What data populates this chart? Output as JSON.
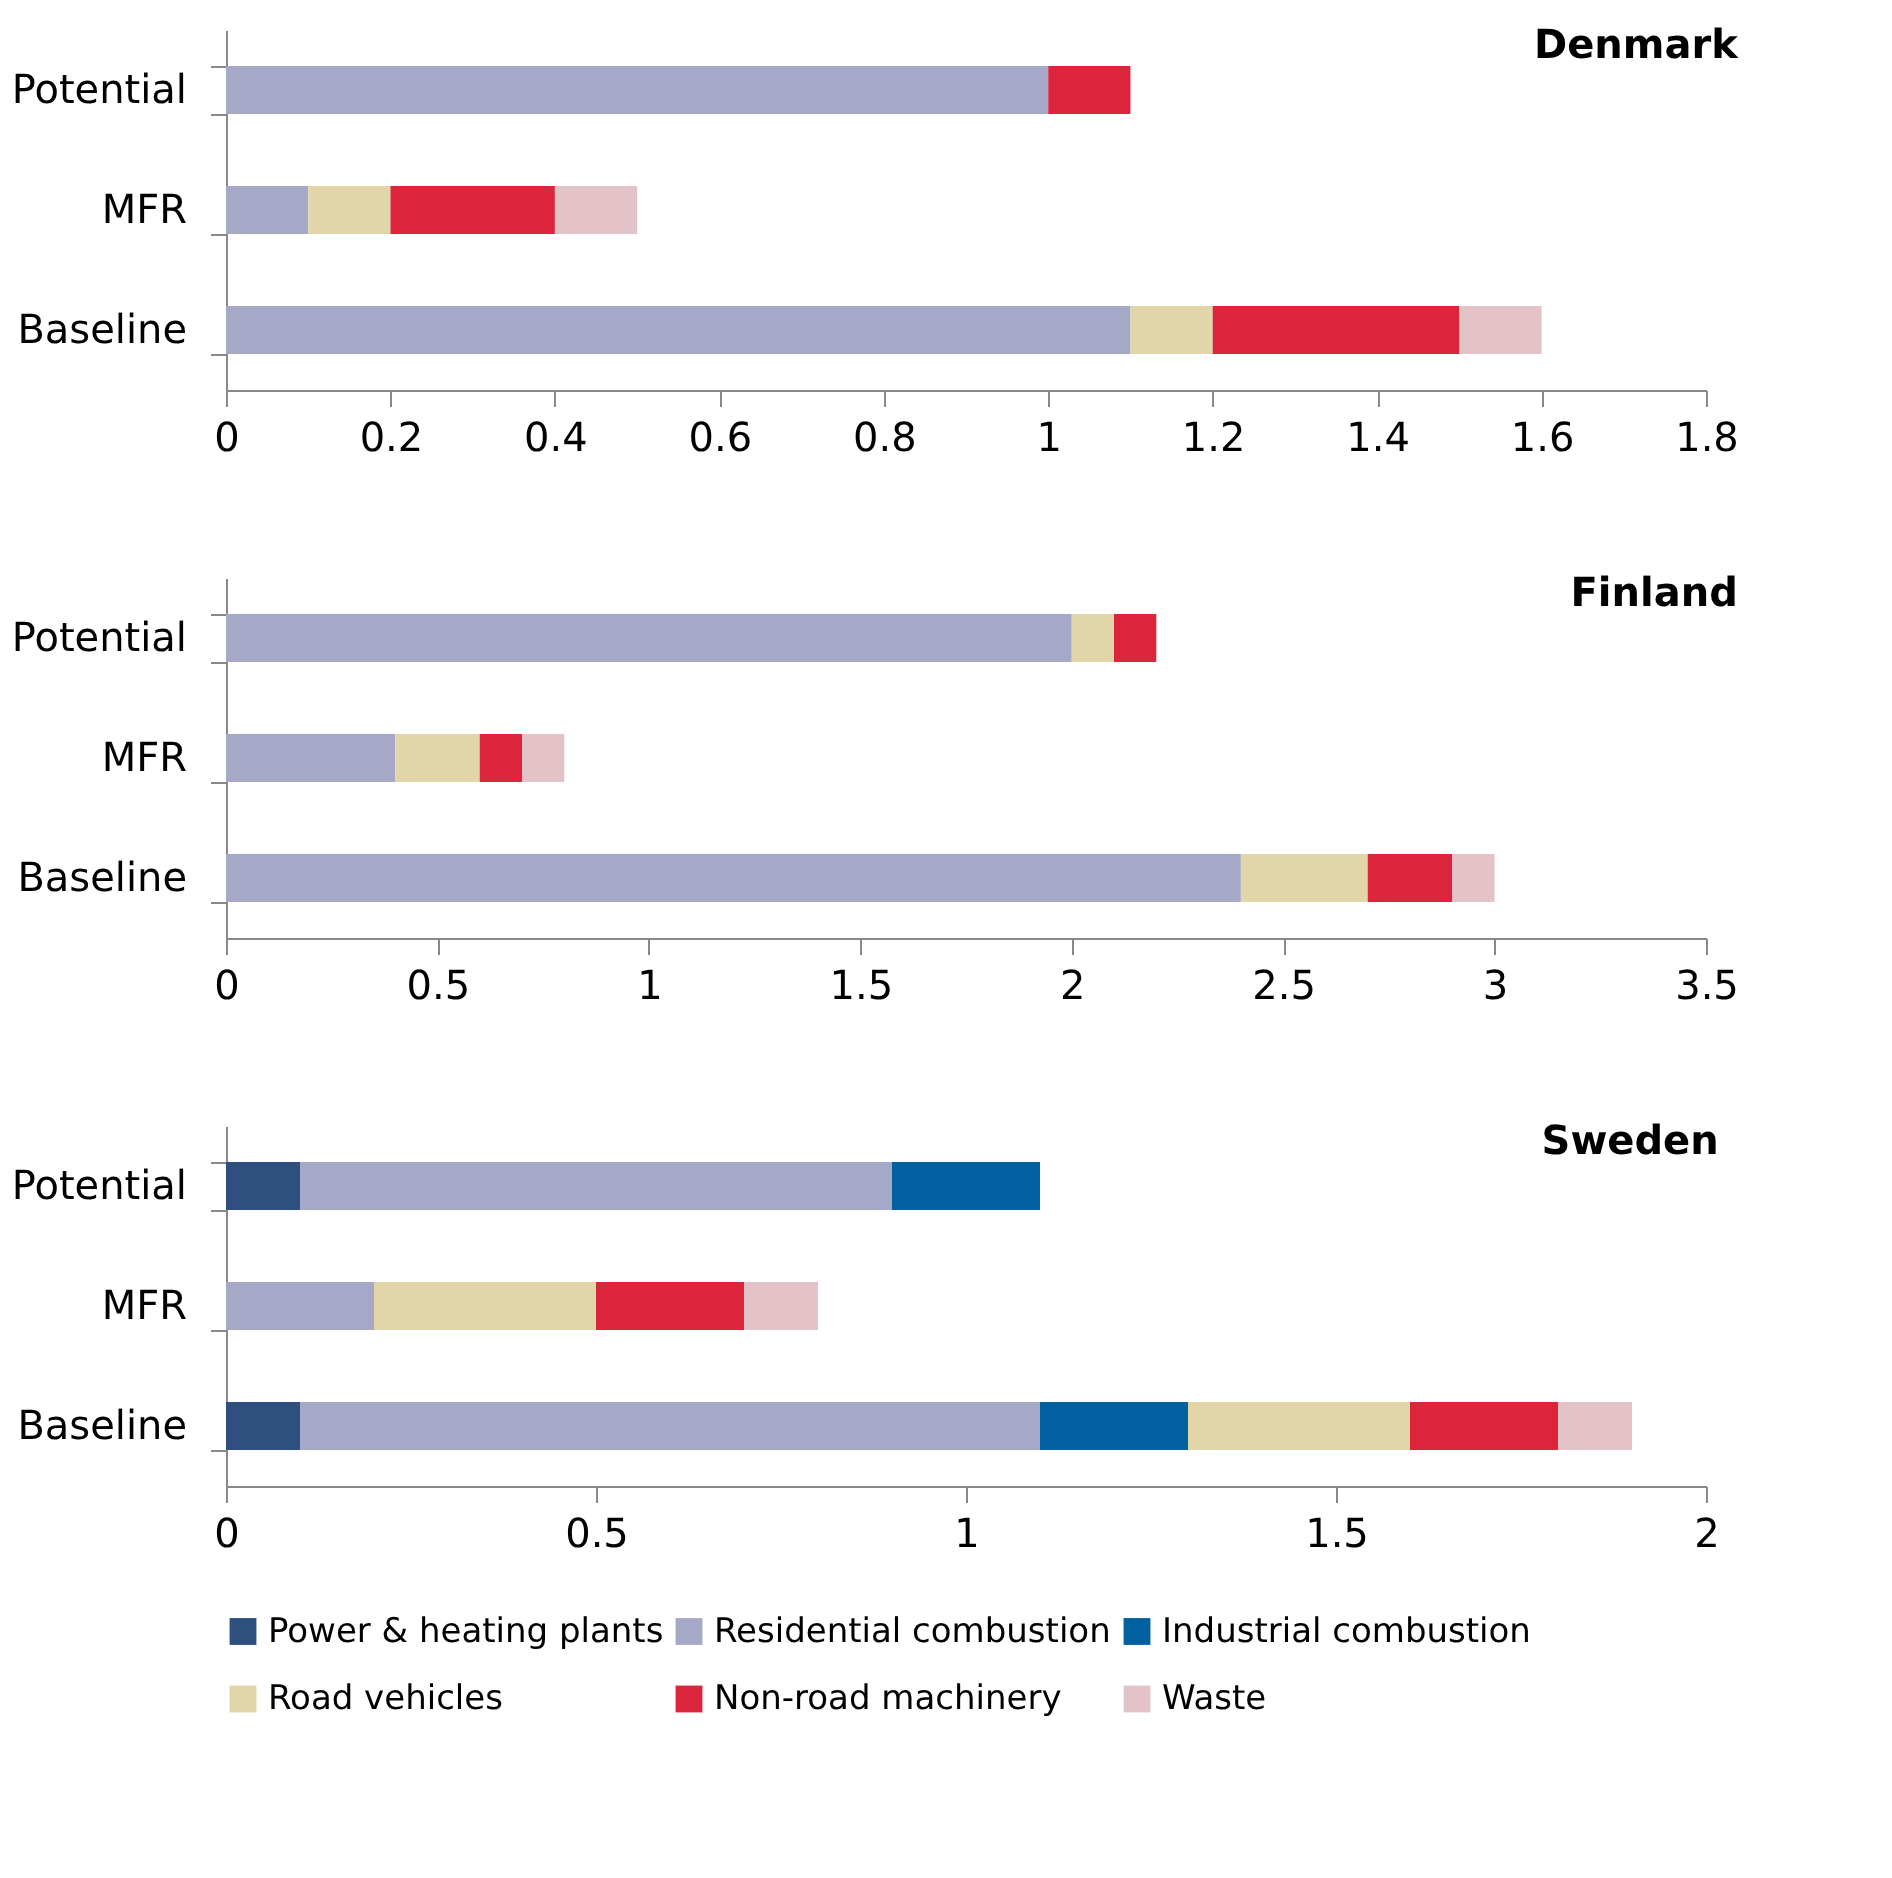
{
  "chart_data": [
    {
      "type": "bar",
      "orientation": "horizontal",
      "stacked": true,
      "title": "Denmark",
      "categories": [
        "Potential",
        "MFR",
        "Baseline"
      ],
      "xlim": [
        0,
        1.8
      ],
      "xticks": [
        0,
        0.2,
        0.4,
        0.6,
        0.8,
        1,
        1.2,
        1.4,
        1.6,
        1.8
      ],
      "grid": false,
      "series": [
        {
          "color": "#a6a8c8",
          "values": [
            1.0,
            0.1,
            1.1
          ]
        },
        {
          "color": "#e2d5a8",
          "values": [
            null,
            0.1,
            0.1
          ]
        },
        {
          "color": "#dc243c",
          "values": [
            0.1,
            0.2,
            0.3
          ]
        },
        {
          "color": "#e3c2c8",
          "values": [
            null,
            0.1,
            0.1
          ]
        }
      ]
    },
    {
      "type": "bar",
      "orientation": "horizontal",
      "stacked": true,
      "title": "Finland",
      "categories": [
        "Potential",
        "MFR",
        "Baseline"
      ],
      "xlim": [
        0,
        3.5
      ],
      "xticks": [
        0,
        0.5,
        1,
        1.5,
        2,
        2.5,
        3,
        3.5
      ],
      "grid": false,
      "series": [
        {
          "color": "#a6a8c8",
          "values": [
            2.0,
            0.4,
            2.4
          ]
        },
        {
          "color": "#e2d5a8",
          "values": [
            0.1,
            0.2,
            0.3
          ]
        },
        {
          "color": "#dc243c",
          "values": [
            0.1,
            0.1,
            0.2
          ]
        },
        {
          "color": "#e3c2c8",
          "values": [
            null,
            0.1,
            0.1
          ]
        }
      ]
    },
    {
      "type": "bar",
      "orientation": "horizontal",
      "stacked": true,
      "title": "Sweden",
      "categories": [
        "Potential",
        "MFR",
        "Baseline"
      ],
      "xlim": [
        0,
        2
      ],
      "xticks": [
        0,
        0.5,
        1,
        1.5,
        2
      ],
      "grid": false,
      "legend": "bottom",
      "series": [
        {
          "name": "Power & heating plants",
          "color": "#2f4f7f",
          "values": [
            0.1,
            null,
            0.1
          ]
        },
        {
          "name": "Residential combustion",
          "color": "#a6a8c8",
          "values": [
            0.8,
            0.2,
            1.0
          ]
        },
        {
          "name": "Industrial combustion",
          "color": "#0060a0",
          "values": [
            0.2,
            null,
            0.2
          ]
        },
        {
          "name": "Road vehicles",
          "color": "#e2d5a8",
          "values": [
            null,
            0.3,
            0.3
          ]
        },
        {
          "name": "Non-road machinery",
          "color": "#dc243c",
          "values": [
            null,
            0.2,
            0.2
          ]
        },
        {
          "name": "Waste",
          "color": "#e3c2c8",
          "values": [
            null,
            0.1,
            0.1
          ]
        }
      ]
    }
  ]
}
